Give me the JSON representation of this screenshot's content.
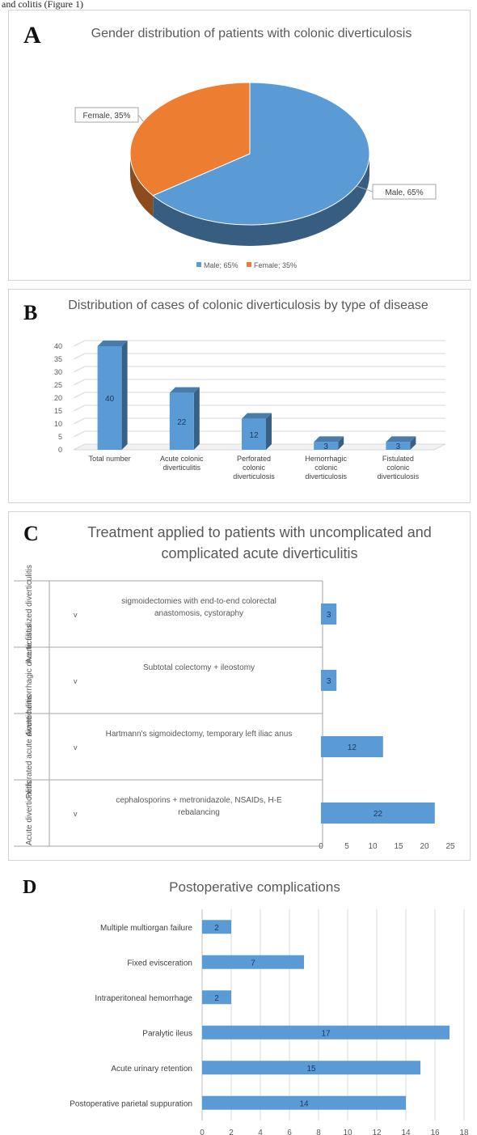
{
  "page": {
    "top_fragment": "and colitis (Figure 1)"
  },
  "chart_data": [
    {
      "panel": "A",
      "type": "pie",
      "title": "Gender distribution of patients with colonic diverticulosis",
      "categories": [
        "Male",
        "Female"
      ],
      "values": [
        65,
        35
      ],
      "slice_labels": [
        "Male, 65%",
        "Female, 35%"
      ],
      "legend": [
        "Male; 65%",
        "Female; 35%"
      ],
      "colors": [
        "#5b9bd5",
        "#ed7d31"
      ],
      "legend_position": "bottom"
    },
    {
      "panel": "B",
      "type": "bar",
      "title": "Distribution of cases of colonic diverticulosis by type of disease",
      "categories": [
        "Total number",
        "Acute colonic diverticulitis",
        "Perforated colonic diverticulosis",
        "Hemorrhagic colonic diverticulosis",
        "Fistulated colonic diverticulosis"
      ],
      "category_lines": [
        [
          "Total number"
        ],
        [
          "Acute colonic",
          "diverticulitis"
        ],
        [
          "Perforated",
          "colonic",
          "diverticulosis"
        ],
        [
          "Hemorrhagic",
          "colonic",
          "diverticulosis"
        ],
        [
          "Fistulated",
          "colonic",
          "diverticulosis"
        ]
      ],
      "values": [
        40,
        22,
        12,
        3,
        3
      ],
      "ylim": [
        0,
        40
      ],
      "yticks": [
        0,
        5,
        10,
        15,
        20,
        25,
        30,
        35,
        40
      ],
      "grid": true,
      "color": "#5b9bd5"
    },
    {
      "panel": "C",
      "type": "bar",
      "orientation": "horizontal",
      "title": "Treatment applied to patients with uncomplicated and complicated acute diverticulitis",
      "table_rows": [
        {
          "group": "Acute fistulized diverticulitis",
          "mark": "v",
          "treatment": "sigmoidectomies with end-to-end colorectal anastomosis, cystoraphy",
          "value": 3
        },
        {
          "group": "Acute hemorrhagic diverticulitis",
          "mark": "v",
          "treatment": "Subtotal colectomy + ileostomy",
          "value": 3
        },
        {
          "group": "Perforated acute diverticulitis",
          "mark": "v",
          "treatment": "Hartmann's sigmoidectomy, temporary left iliac anus",
          "value": 12
        },
        {
          "group": "Acute diverticulitis",
          "mark": "v",
          "treatment": "cephalosporins + metronidazole, NSAIDs, H-E rebalancing",
          "value": 22
        }
      ],
      "xlim": [
        0,
        25
      ],
      "xticks": [
        0,
        5,
        10,
        15,
        20,
        25
      ],
      "color": "#5b9bd5"
    },
    {
      "panel": "D",
      "type": "bar",
      "orientation": "horizontal",
      "title": "Postoperative complications",
      "categories": [
        "Multiple multiorgan failure",
        "Fixed evisceration",
        "Intraperitoneal hemorrhage",
        "Paralytic ileus",
        "Acute urinary retention",
        "Postoperative parietal suppuration"
      ],
      "values": [
        2,
        7,
        2,
        17,
        15,
        14
      ],
      "xlim": [
        0,
        18
      ],
      "xticks": [
        0,
        2,
        4,
        6,
        8,
        10,
        12,
        14,
        16,
        18
      ],
      "grid": true,
      "color": "#5b9bd5"
    }
  ]
}
